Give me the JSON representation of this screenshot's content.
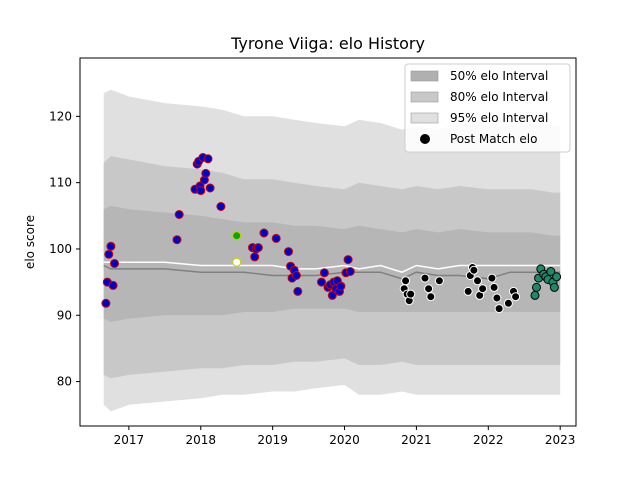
{
  "chart_data": {
    "type": "scatter",
    "title": "Tyrone Viiga: elo History",
    "xlabel": "",
    "ylabel": "elo score",
    "xlim": [
      2016.32,
      2023.22
    ],
    "ylim": [
      73.3,
      128.8
    ],
    "x_ticks": [
      2017,
      2018,
      2019,
      2020,
      2021,
      2022,
      2023
    ],
    "y_ticks": [
      80,
      90,
      100,
      110,
      120
    ],
    "grid": false,
    "legend_position": "top-right",
    "legend": [
      {
        "label": "50% elo Interval",
        "kind": "patch",
        "color": "#b0b0b0"
      },
      {
        "label": "80% elo Interval",
        "kind": "patch",
        "color": "#c8c8c8"
      },
      {
        "label": "95% elo Interval",
        "kind": "patch",
        "color": "#e0e0e0"
      },
      {
        "label": "Post Match elo",
        "kind": "marker",
        "color": "#000000"
      }
    ],
    "colors": {
      "band50": "#b0b0b0",
      "band80": "#c8c8c8",
      "band95": "#e0e0e0",
      "median_line": "#808080",
      "mean_line": "#ffffff"
    },
    "bands": {
      "x": [
        2016.65,
        2016.75,
        2017.0,
        2017.5,
        2018.0,
        2018.3,
        2018.6,
        2019.0,
        2019.3,
        2019.6,
        2020.0,
        2020.2,
        2020.5,
        2020.8,
        2021.0,
        2021.3,
        2021.6,
        2022.0,
        2022.3,
        2022.6,
        2022.9,
        2023.0
      ],
      "p95_hi": [
        123.5,
        124.0,
        123.0,
        122.0,
        121.5,
        121.0,
        120.0,
        120.0,
        119.5,
        119.0,
        118.5,
        119.5,
        119.0,
        118.0,
        118.5,
        118.0,
        119.0,
        118.5,
        118.5,
        119.0,
        118.5,
        118.5
      ],
      "p80_hi": [
        113.0,
        114.0,
        113.5,
        112.5,
        112.0,
        111.5,
        110.5,
        110.5,
        110.0,
        109.5,
        109.0,
        110.0,
        109.5,
        109.0,
        109.5,
        109.0,
        109.5,
        109.0,
        109.0,
        109.0,
        108.5,
        108.5
      ],
      "p50_hi": [
        106.0,
        106.5,
        106.0,
        105.5,
        105.0,
        104.5,
        104.0,
        104.0,
        103.5,
        103.5,
        103.0,
        103.5,
        103.0,
        102.5,
        103.0,
        102.5,
        103.0,
        102.5,
        102.5,
        102.5,
        102.0,
        102.0
      ],
      "p50_lo": [
        89.5,
        89.0,
        89.5,
        90.0,
        90.0,
        90.0,
        90.5,
        90.5,
        91.0,
        91.0,
        91.0,
        90.5,
        90.5,
        90.5,
        90.5,
        90.5,
        90.5,
        90.5,
        90.5,
        90.5,
        90.5,
        90.5
      ],
      "p80_lo": [
        81.0,
        80.5,
        81.0,
        81.5,
        82.0,
        82.0,
        82.5,
        82.5,
        83.0,
        83.0,
        83.5,
        82.5,
        82.5,
        83.0,
        82.5,
        82.5,
        82.5,
        82.5,
        82.5,
        82.5,
        82.5,
        82.5
      ],
      "p95_lo": [
        76.5,
        75.5,
        76.5,
        77.0,
        77.5,
        78.0,
        78.0,
        78.5,
        78.5,
        79.0,
        79.5,
        78.0,
        78.0,
        78.5,
        78.0,
        78.0,
        78.0,
        78.0,
        78.0,
        78.0,
        78.0,
        78.0
      ],
      "median": [
        97.5,
        97.0,
        97.0,
        97.0,
        96.5,
        96.5,
        96.5,
        96.0,
        96.0,
        96.0,
        96.5,
        96.5,
        96.5,
        95.5,
        96.5,
        96.0,
        96.0,
        95.5,
        96.5,
        96.5,
        96.5,
        96.5
      ],
      "mean": [
        98.0,
        98.0,
        98.0,
        98.0,
        97.5,
        97.5,
        97.5,
        97.5,
        97.0,
        97.0,
        97.5,
        97.0,
        97.5,
        96.5,
        97.5,
        97.0,
        97.5,
        97.5,
        97.5,
        97.5,
        97.5,
        97.5
      ]
    },
    "series": [
      {
        "face": "#0000cc",
        "edge": "#cc0000",
        "points": [
          [
            2016.68,
            91.8
          ],
          [
            2016.7,
            95.0
          ],
          [
            2016.72,
            99.2
          ],
          [
            2016.75,
            100.4
          ],
          [
            2016.78,
            94.5
          ],
          [
            2016.8,
            97.8
          ],
          [
            2017.67,
            101.4
          ],
          [
            2017.7,
            105.2
          ],
          [
            2017.92,
            109.0
          ],
          [
            2017.95,
            112.8
          ],
          [
            2017.97,
            113.2
          ],
          [
            2017.99,
            109.5
          ],
          [
            2018.0,
            108.8
          ],
          [
            2018.03,
            113.8
          ],
          [
            2018.05,
            110.4
          ],
          [
            2018.07,
            111.4
          ],
          [
            2018.1,
            113.6
          ],
          [
            2018.13,
            109.2
          ],
          [
            2018.28,
            106.4
          ],
          [
            2018.72,
            100.2
          ],
          [
            2018.75,
            98.8
          ],
          [
            2018.77,
            100.0
          ],
          [
            2018.8,
            100.2
          ],
          [
            2018.88,
            102.4
          ],
          [
            2019.05,
            101.6
          ],
          [
            2019.22,
            99.6
          ],
          [
            2019.25,
            97.4
          ],
          [
            2019.27,
            95.6
          ],
          [
            2019.3,
            96.8
          ],
          [
            2019.33,
            96.0
          ],
          [
            2019.35,
            93.6
          ],
          [
            2019.68,
            95.0
          ],
          [
            2019.72,
            96.4
          ],
          [
            2019.77,
            94.2
          ],
          [
            2019.8,
            94.6
          ],
          [
            2019.83,
            93.0
          ],
          [
            2019.85,
            95.0
          ],
          [
            2019.88,
            94.0
          ],
          [
            2019.9,
            95.2
          ],
          [
            2019.93,
            93.6
          ],
          [
            2019.95,
            94.4
          ],
          [
            2020.02,
            96.4
          ],
          [
            2020.05,
            98.4
          ],
          [
            2020.08,
            96.6
          ]
        ]
      },
      {
        "face": "#ffffff",
        "edge": "#cccc00",
        "points": [
          [
            2018.5,
            98.0
          ]
        ]
      },
      {
        "face": "#00aa00",
        "edge": "#cccc00",
        "points": [
          [
            2018.5,
            102.0
          ]
        ]
      },
      {
        "face": "#000000",
        "edge": "#ffffff",
        "points": [
          [
            2020.83,
            94.0
          ],
          [
            2020.85,
            95.2
          ],
          [
            2020.87,
            93.2
          ],
          [
            2020.9,
            92.2
          ],
          [
            2020.92,
            93.2
          ],
          [
            2021.12,
            95.6
          ],
          [
            2021.17,
            94.0
          ],
          [
            2021.2,
            92.8
          ],
          [
            2021.32,
            95.2
          ],
          [
            2021.72,
            93.6
          ],
          [
            2021.75,
            96.0
          ],
          [
            2021.78,
            97.2
          ],
          [
            2021.8,
            96.8
          ],
          [
            2021.85,
            95.2
          ],
          [
            2021.88,
            93.0
          ],
          [
            2021.92,
            94.0
          ],
          [
            2022.05,
            95.6
          ],
          [
            2022.08,
            94.2
          ],
          [
            2022.12,
            92.6
          ],
          [
            2022.15,
            91.0
          ],
          [
            2022.28,
            91.8
          ],
          [
            2022.35,
            93.6
          ],
          [
            2022.38,
            92.8
          ]
        ]
      },
      {
        "face": "#1a8a6a",
        "edge": "#000000",
        "points": [
          [
            2022.65,
            93.0
          ],
          [
            2022.67,
            94.2
          ],
          [
            2022.7,
            95.6
          ],
          [
            2022.73,
            97.0
          ],
          [
            2022.77,
            96.2
          ],
          [
            2022.8,
            95.8
          ],
          [
            2022.83,
            95.4
          ],
          [
            2022.87,
            96.6
          ],
          [
            2022.9,
            95.0
          ],
          [
            2022.92,
            94.2
          ],
          [
            2022.95,
            95.8
          ]
        ]
      }
    ]
  }
}
